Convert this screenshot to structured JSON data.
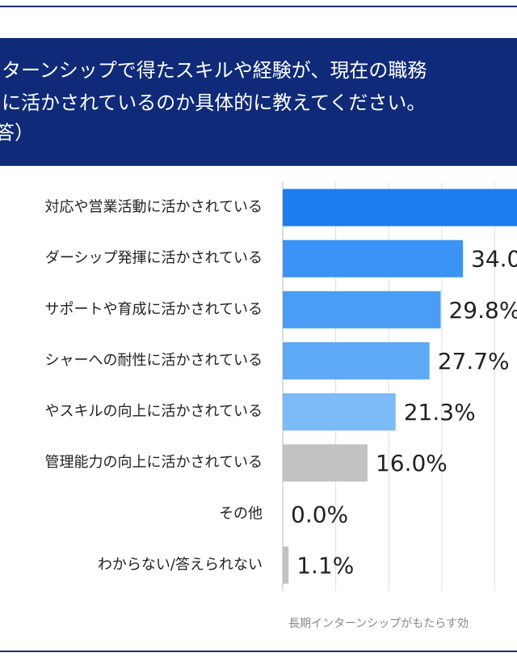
{
  "chart_data": {
    "type": "hbar",
    "title_lines": [
      "ターンシップで得たスキルや経験が、現在の職務",
      "に活かされているのか具体的に教えてください。",
      "答）"
    ],
    "categories": [
      "対応や営業活動に活かされている",
      "ダーシップ発揮に活かされている",
      "サポートや育成に活かされている",
      "シャーへの耐性に活かされている",
      "やスキルの向上に活かされている",
      "管理能力の向上に活かされている",
      "その他",
      "わからない/答えられない"
    ],
    "values": [
      48.9,
      34.0,
      29.8,
      27.7,
      21.3,
      16.0,
      0.0,
      1.1
    ],
    "value_labels": [
      null,
      "34.0%",
      "29.8%",
      "27.7%",
      "21.3%",
      "16.0%",
      "0.0%",
      "1.1%"
    ],
    "colors": [
      "#1a7ef0",
      "#3a93f5",
      "#4a9df5",
      "#5ea9f6",
      "#7cbaf8",
      "#c2c2c2",
      "#c2c2c2",
      "#c2c2c2"
    ],
    "xlim": [
      0,
      50
    ],
    "xticks": [
      0,
      10,
      20,
      30,
      40
    ],
    "grid": true,
    "source": "長期インターンシップがもたらす効"
  }
}
